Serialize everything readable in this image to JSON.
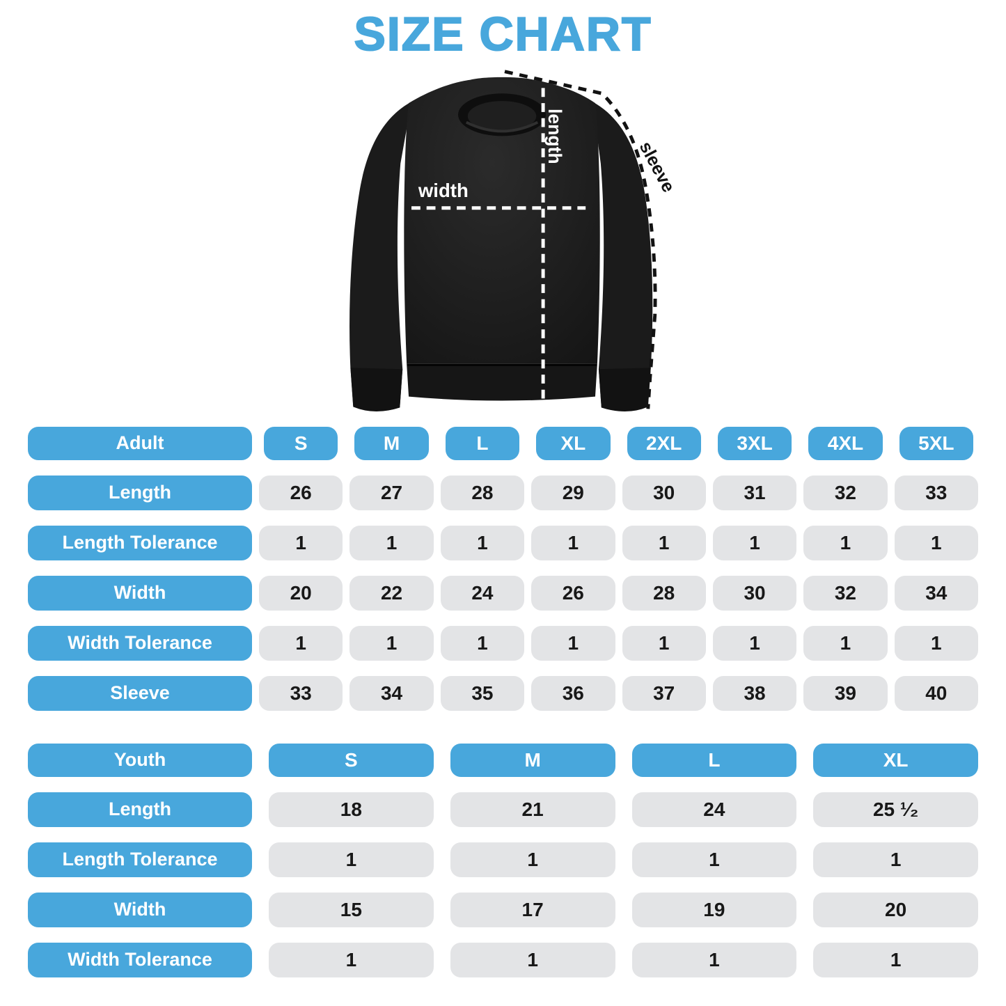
{
  "title": "SIZE CHART",
  "colors": {
    "accent": "#48A7DC",
    "cell_bg": "#E3E4E6",
    "ink": "#181818",
    "garment": "#1B1B1B",
    "white": "#FFFFFF"
  },
  "diagram": {
    "width_label": "width",
    "length_label": "length",
    "sleeve_label": "sleeve"
  },
  "chart_data": [
    {
      "type": "table",
      "name": "adult",
      "header_label": "Adult",
      "columns": [
        "S",
        "M",
        "L",
        "XL",
        "2XL",
        "3XL",
        "4XL",
        "5XL"
      ],
      "rows": [
        {
          "label": "Length",
          "values": [
            "26",
            "27",
            "28",
            "29",
            "30",
            "31",
            "32",
            "33"
          ]
        },
        {
          "label": "Length Tolerance",
          "values": [
            "1",
            "1",
            "1",
            "1",
            "1",
            "1",
            "1",
            "1"
          ]
        },
        {
          "label": "Width",
          "values": [
            "20",
            "22",
            "24",
            "26",
            "28",
            "30",
            "32",
            "34"
          ]
        },
        {
          "label": "Width Tolerance",
          "values": [
            "1",
            "1",
            "1",
            "1",
            "1",
            "1",
            "1",
            "1"
          ]
        },
        {
          "label": "Sleeve",
          "values": [
            "33",
            "34",
            "35",
            "36",
            "37",
            "38",
            "39",
            "40"
          ]
        }
      ]
    },
    {
      "type": "table",
      "name": "youth",
      "header_label": "Youth",
      "columns": [
        "S",
        "M",
        "L",
        "XL"
      ],
      "rows": [
        {
          "label": "Length",
          "values": [
            "18",
            "21",
            "24",
            "25 ¹⁄₂"
          ]
        },
        {
          "label": "Length Tolerance",
          "values": [
            "1",
            "1",
            "1",
            "1"
          ]
        },
        {
          "label": "Width",
          "values": [
            "15",
            "17",
            "19",
            "20"
          ]
        },
        {
          "label": "Width Tolerance",
          "values": [
            "1",
            "1",
            "1",
            "1"
          ]
        }
      ]
    }
  ]
}
